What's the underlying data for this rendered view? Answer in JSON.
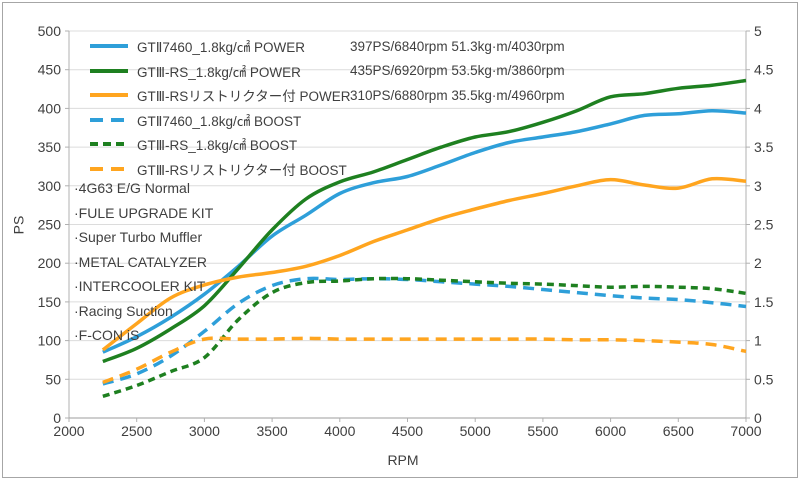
{
  "colors": {
    "blue": "#2E9FD9",
    "green": "#1E8020",
    "orange": "#FFA51F",
    "gridline": "#dcdcdc",
    "axis_line": "#b0b0b0",
    "bottom_axis": "#9c9c9c",
    "text": "#3f3f3f",
    "frame_border": "#a6a6a6"
  },
  "chart_data": {
    "type": "line",
    "x_axis": {
      "label": "RPM",
      "min": 2000,
      "max": 7000,
      "step": 500,
      "ticks": [
        "2000",
        "2500",
        "3000",
        "3500",
        "4000",
        "4500",
        "5000",
        "5500",
        "6000",
        "6500",
        "7000"
      ]
    },
    "y_left": {
      "label": "PS",
      "min": 0,
      "max": 500,
      "step": 50,
      "ticks": [
        "0",
        "50",
        "100",
        "150",
        "200",
        "250",
        "300",
        "350",
        "400",
        "450",
        "500"
      ]
    },
    "y_right": {
      "label": "",
      "min": 0,
      "max": 5,
      "step": 0.5,
      "ticks": [
        "0",
        "0.5",
        "1",
        "1.5",
        "2",
        "2.5",
        "3",
        "3.5",
        "4",
        "4.5",
        "5"
      ]
    },
    "grid": "horizontal-only",
    "legend_position": "top-left-inside",
    "x": [
      2250,
      2500,
      2750,
      3000,
      3250,
      3500,
      3750,
      4000,
      4250,
      4500,
      4750,
      5000,
      5250,
      5500,
      5750,
      6000,
      6250,
      6500,
      6750,
      7000
    ],
    "series": [
      {
        "id": "gt2-7460-power",
        "name": "GTⅡ7460_1.8kg/㎠ POWER",
        "axis": "left",
        "color": "blue",
        "style": "solid",
        "dash": null,
        "values": [
          85,
          105,
          130,
          160,
          196,
          235,
          262,
          290,
          304,
          312,
          327,
          343,
          356,
          363,
          370,
          380,
          391,
          393,
          397,
          394
        ]
      },
      {
        "id": "gt3-rs-power",
        "name": "GTⅢ-RS_1.8kg/㎠ POWER",
        "axis": "left",
        "color": "green",
        "style": "solid",
        "dash": null,
        "values": [
          73,
          90,
          115,
          145,
          193,
          243,
          283,
          305,
          318,
          334,
          350,
          363,
          370,
          382,
          397,
          415,
          419,
          426,
          430,
          436
        ]
      },
      {
        "id": "gt3-rs-restrictor-power",
        "name": "GTⅢ-RSリストリクター付 POWER",
        "axis": "left",
        "color": "orange",
        "style": "solid",
        "dash": null,
        "values": [
          88,
          122,
          155,
          172,
          182,
          188,
          196,
          210,
          228,
          243,
          258,
          270,
          281,
          290,
          300,
          308,
          301,
          297,
          309,
          306
        ]
      },
      {
        "id": "gt2-7460-boost",
        "name": "GTⅡ7460_1.8kg/㎠ BOOST",
        "axis": "right",
        "color": "blue",
        "style": "dashed",
        "dash": "11 7",
        "values": [
          0.44,
          0.57,
          0.8,
          1.12,
          1.48,
          1.71,
          1.8,
          1.79,
          1.8,
          1.79,
          1.76,
          1.73,
          1.7,
          1.66,
          1.62,
          1.58,
          1.55,
          1.53,
          1.49,
          1.44
        ]
      },
      {
        "id": "gt3-rs-boost",
        "name": "GTⅢ-RS_1.8kg/㎠ BOOST",
        "axis": "right",
        "color": "green",
        "style": "dashed",
        "dash": "7 5",
        "values": [
          0.28,
          0.42,
          0.6,
          0.78,
          1.27,
          1.62,
          1.75,
          1.77,
          1.8,
          1.8,
          1.78,
          1.76,
          1.74,
          1.73,
          1.71,
          1.69,
          1.7,
          1.69,
          1.67,
          1.61
        ]
      },
      {
        "id": "gt3-rs-restrictor-boost",
        "name": "GTⅢ-RSリストリクター付 BOOST",
        "axis": "right",
        "color": "orange",
        "style": "dashed",
        "dash": "11 7",
        "values": [
          0.46,
          0.63,
          0.85,
          1.02,
          1.02,
          1.02,
          1.03,
          1.02,
          1.02,
          1.02,
          1.02,
          1.02,
          1.02,
          1.02,
          1.01,
          1.01,
          1.0,
          0.98,
          0.95,
          0.86
        ]
      }
    ],
    "legend": [
      {
        "series": "gt2-7460-power",
        "label": "GTⅡ7460_1.8kg/㎠ POWER",
        "stats": "397PS/6840rpm 51.3kg·m/4030rpm"
      },
      {
        "series": "gt3-rs-power",
        "label": "GTⅢ-RS_1.8kg/㎠ POWER",
        "stats": "435PS/6920rpm 53.5kg·m/3860rpm"
      },
      {
        "series": "gt3-rs-restrictor-power",
        "label": "GTⅢ-RSリストリクター付 POWER",
        "stats": "310PS/6880rpm 35.5kg·m/4960rpm"
      },
      {
        "series": "gt2-7460-boost",
        "label": "GTⅡ7460_1.8kg/㎠ BOOST",
        "stats": ""
      },
      {
        "series": "gt3-rs-boost",
        "label": "GTⅢ-RS_1.8kg/㎠ BOOST",
        "stats": ""
      },
      {
        "series": "gt3-rs-restrictor-boost",
        "label": "GTⅢ-RSリストリクター付 BOOST",
        "stats": ""
      }
    ],
    "annotations": [
      "·4G63 E/G Normal",
      "·FULE UPGRADE KIT",
      "·Super Turbo Muffler",
      "·METAL CATALYZER",
      "·INTERCOOLER KIT",
      "·Racing Suction",
      "·F-CON iS"
    ]
  }
}
